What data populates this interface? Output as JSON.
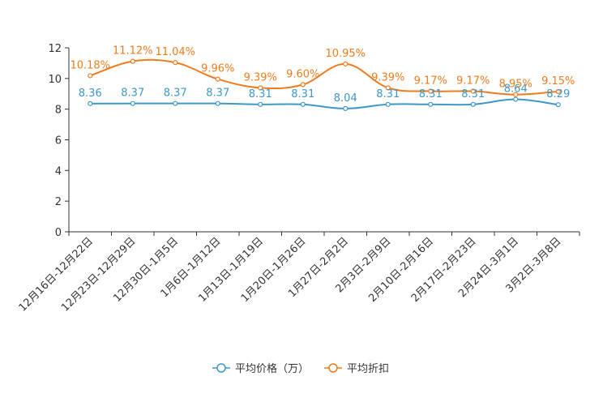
{
  "chart_data": {
    "type": "line",
    "categories": [
      "12月16日-12月22日",
      "12月23日-12月29日",
      "12月30日-1月5日",
      "1月6日-1月12日",
      "1月13日-1月19日",
      "1月20日-1月26日",
      "1月27日-2月2日",
      "2月3日-2月9日",
      "2月10日-2月16日",
      "2月17日-2月23日",
      "2月24日-3月1日",
      "3月2日-3月8日"
    ],
    "y_ticks": [
      "0",
      "2",
      "4",
      "6",
      "8",
      "10",
      "12"
    ],
    "ylim": [
      0,
      12
    ],
    "series": [
      {
        "name": "平均价格（万）",
        "color": "#3d97c8",
        "values": [
          8.36,
          8.37,
          8.37,
          8.37,
          8.31,
          8.31,
          8.04,
          8.31,
          8.31,
          8.31,
          8.64,
          8.29
        ],
        "labels": [
          "8.36",
          "8.37",
          "8.37",
          "8.37",
          "8.31",
          "8.31",
          "8.04",
          "8.31",
          "8.31",
          "8.31",
          "8.64",
          "8.29"
        ]
      },
      {
        "name": "平均折扣",
        "color": "#f07b1d",
        "values": [
          10.18,
          11.12,
          11.04,
          9.96,
          9.39,
          9.6,
          10.95,
          9.39,
          9.17,
          9.17,
          8.95,
          9.15
        ],
        "labels": [
          "10.18%",
          "11.12%",
          "11.04%",
          "9.96%",
          "9.39%",
          "9.60%",
          "10.95%",
          "9.39%",
          "9.17%",
          "9.17%",
          "8.95%",
          "9.15%"
        ]
      }
    ],
    "legend_position": "bottom-center"
  }
}
